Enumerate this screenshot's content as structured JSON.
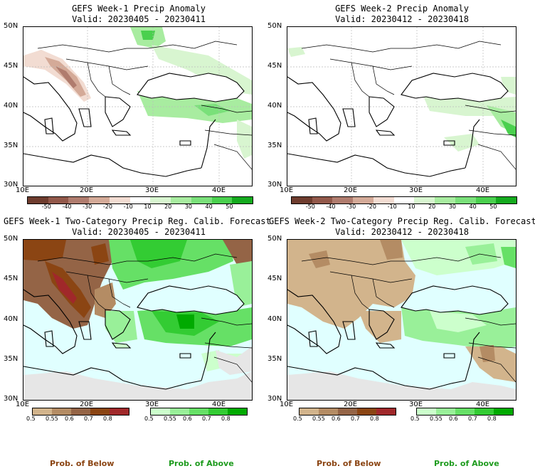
{
  "panels": [
    {
      "title": "GEFS Week-1 Precip Anomaly",
      "valid": "Valid: 20230405 - 20230411"
    },
    {
      "title": "GEFS Week-2 Precip Anomaly",
      "valid": "Valid: 20230412 - 20230418"
    },
    {
      "title": "GEFS Week-1 Two-Category Precip Reg. Calib. Forecast",
      "valid": "Valid: 20230405 - 20230411"
    },
    {
      "title": "GEFS Week-2 Two-Category Precip Reg. Calib. Forecast",
      "valid": "Valid: 20230412 - 20230418"
    }
  ],
  "lat_labels": [
    "50N",
    "45N",
    "40N",
    "35N",
    "30N"
  ],
  "lon_labels": [
    "10E",
    "20E",
    "30E",
    "40E"
  ],
  "anomaly_colorbar": {
    "labels": [
      "-50",
      "-40",
      "-30",
      "-20",
      "-10",
      "10",
      "20",
      "30",
      "40",
      "50"
    ],
    "colors": [
      "#6e3c2e",
      "#92584a",
      "#b07c6e",
      "#d4aa98",
      "#f2dcd2",
      "#ffffff",
      "#d8f5d0",
      "#a8eca0",
      "#7ae07a",
      "#4ad04e",
      "#14aa1e"
    ]
  },
  "prob_colorbar": {
    "below_labels": [
      "0.5",
      "0.55",
      "0.6",
      "0.7",
      "0.8"
    ],
    "above_labels": [
      "0.5",
      "0.55",
      "0.6",
      "0.7",
      "0.8"
    ],
    "below_colors": [
      "#d2b48c",
      "#b48c64",
      "#946446",
      "#8b4513",
      "#a0282a"
    ],
    "above_colors": [
      "#ccffcc",
      "#99f099",
      "#66e066",
      "#33cc33",
      "#00aa00"
    ]
  },
  "bottom_labels": {
    "below": "Prob. of Below",
    "above": "Prob. of Above"
  },
  "colors": {
    "below_label": "#8b4513",
    "above_label": "#1e9b1e",
    "ocean_prob": "#e0ffff",
    "land_missing": "#e6e6e6"
  }
}
